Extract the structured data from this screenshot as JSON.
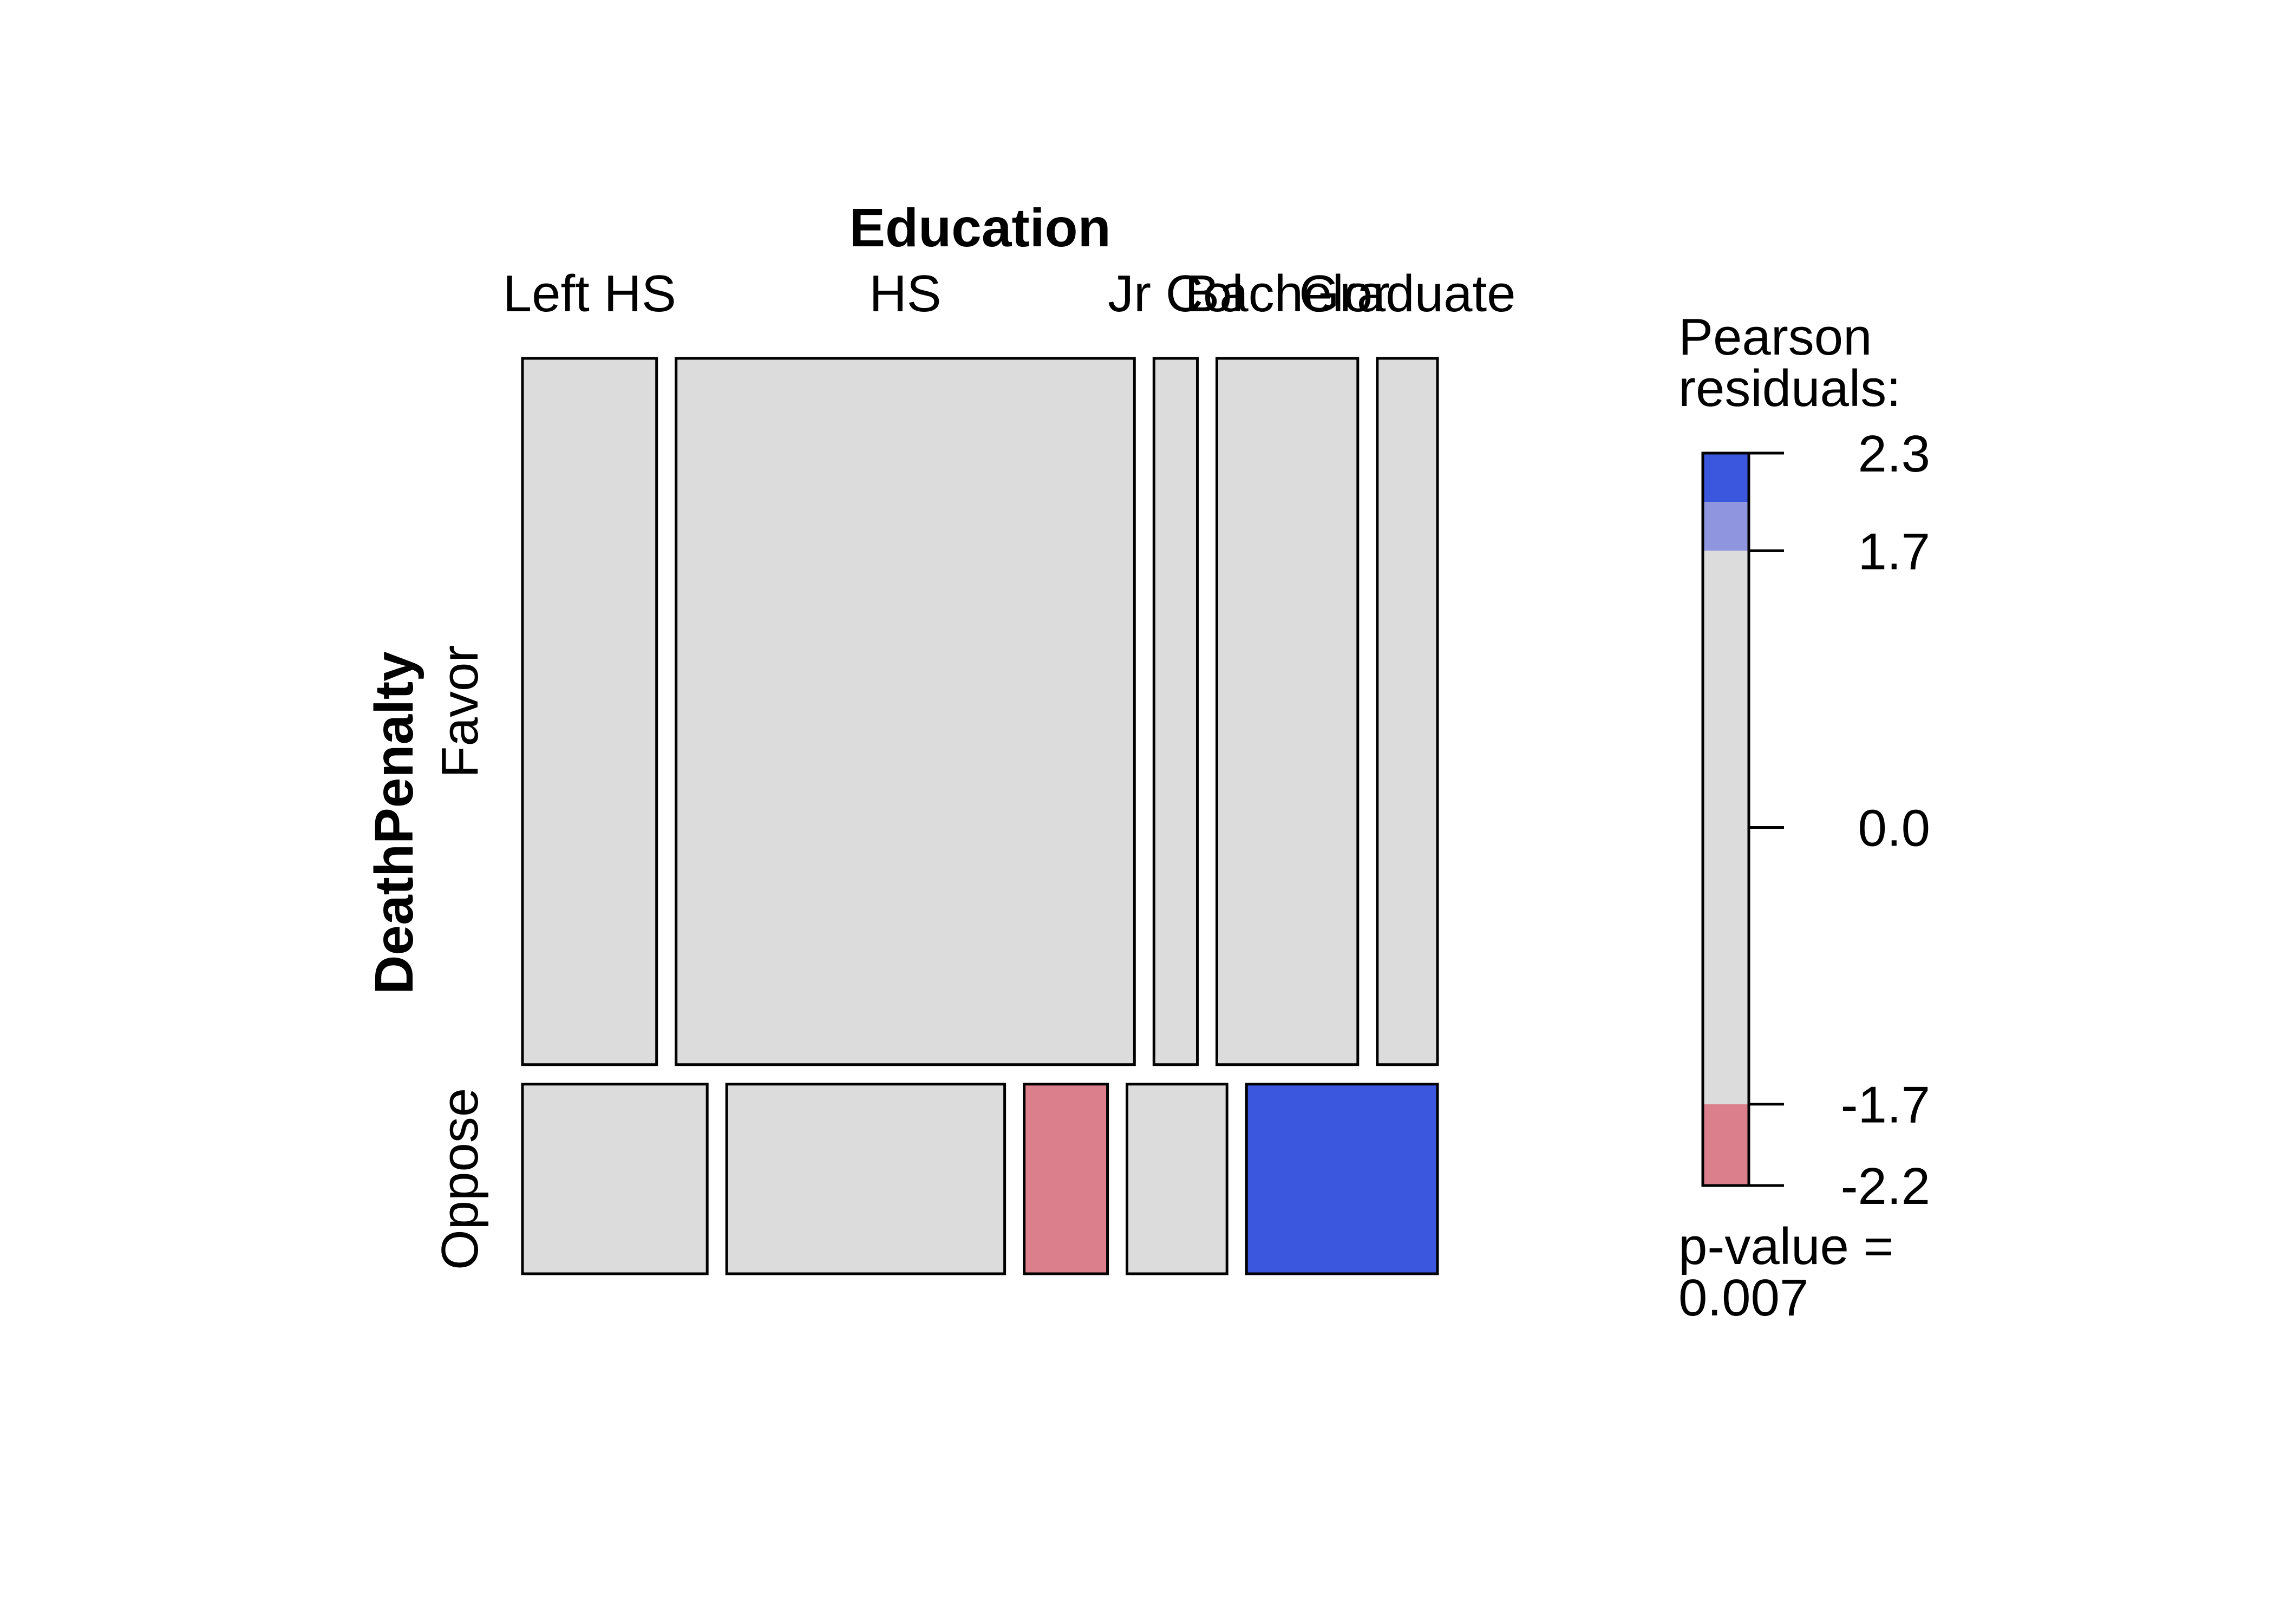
{
  "chart_data": {
    "type": "mosaic",
    "title": "",
    "x_variable": "Education",
    "y_variable": "DeathPenalty",
    "x_categories": [
      "Left HS",
      "HS",
      "Jr Col",
      "Bachelor",
      "Graduate"
    ],
    "y_categories": [
      "Favor",
      "Oppose"
    ],
    "column_share": [
      0.173,
      0.502,
      0.062,
      0.158,
      0.105
    ],
    "favor_share": [
      0.73,
      0.86,
      0.66,
      0.84,
      0.54
    ],
    "residual_class": {
      "Favor": [
        "none",
        "none",
        "none",
        "none",
        "none"
      ],
      "Oppose": [
        "none",
        "none",
        "neg_moderate",
        "none",
        "pos_strong"
      ]
    },
    "legend": {
      "title_line1": "Pearson",
      "title_line2": "residuals:",
      "max": 2.3,
      "min": -2.2,
      "ticks": [
        "2.3",
        "1.7",
        "0.0",
        "-1.7",
        "-2.2"
      ],
      "tick_values": [
        2.3,
        1.7,
        0.0,
        -1.7,
        -2.2
      ],
      "bands": [
        {
          "from": 2.0,
          "to": 2.3,
          "class": "pos_strong"
        },
        {
          "from": 1.7,
          "to": 2.0,
          "class": "pos_moderate"
        },
        {
          "from": -1.7,
          "to": 1.7,
          "class": "none"
        },
        {
          "from": -2.2,
          "to": -1.7,
          "class": "neg_moderate"
        }
      ]
    },
    "colors": {
      "pos_strong": "#3b57de",
      "pos_moderate": "#8f96df",
      "none": "#dcdcdc",
      "neg_moderate": "#db7f8d"
    },
    "pvalue_line1": "p-value =",
    "pvalue_line2": "0.007"
  }
}
